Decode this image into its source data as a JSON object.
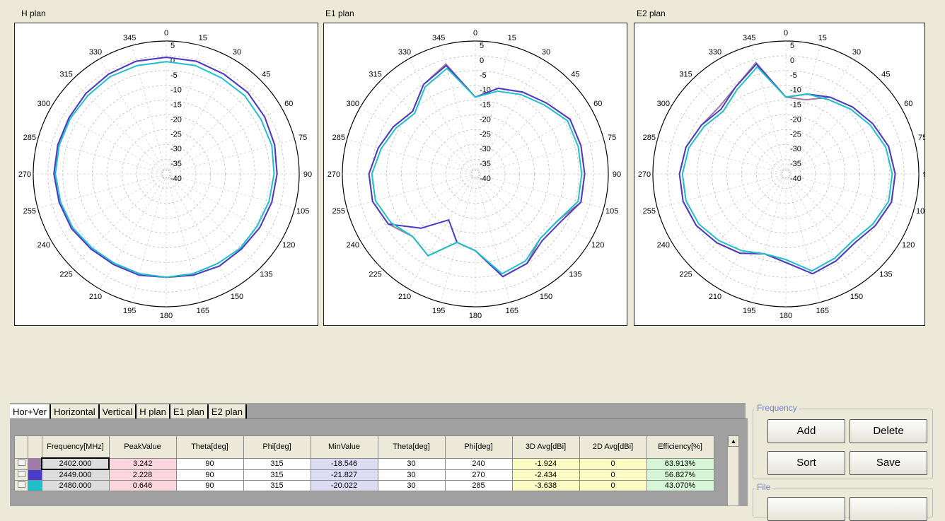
{
  "plots": [
    {
      "title": "H plan",
      "angle_labels": [
        "0",
        "15",
        "30",
        "45",
        "60",
        "75",
        "90",
        "105",
        "120",
        "135",
        "150",
        "165",
        "180",
        "195",
        "210",
        "225",
        "240",
        "255",
        "270",
        "285",
        "300",
        "315",
        "330",
        "345"
      ],
      "radial_labels": [
        "5",
        "0",
        "-5",
        "-10",
        "-15",
        "-20",
        "-25",
        "-30",
        "-35",
        "-40"
      ],
      "series": [
        {
          "color": "#a07aa8",
          "values": [
            -0.5,
            -0.5,
            -1,
            -1,
            -1.5,
            -2,
            -2.5,
            -3,
            -3.5,
            -4,
            -4,
            -4.5,
            -5,
            -5,
            -5,
            -4,
            -3,
            -2.5,
            -2,
            -2,
            -2,
            -1.5,
            -1,
            -0.5
          ]
        },
        {
          "color": "#4a3cc8",
          "values": [
            -0.5,
            -0.5,
            -1,
            -1,
            -1.5,
            -2,
            -2.5,
            -3,
            -3.5,
            -4,
            -4,
            -4.5,
            -5,
            -4.5,
            -4.5,
            -4,
            -3,
            -2.5,
            -2,
            -2,
            -2,
            -1.5,
            -1,
            -0.5
          ]
        },
        {
          "color": "#20c0c8",
          "values": [
            -2,
            -2,
            -2.5,
            -2.5,
            -3,
            -3,
            -3.5,
            -4,
            -4.5,
            -4.5,
            -5,
            -5,
            -5,
            -5,
            -5,
            -4.5,
            -3.5,
            -3,
            -2.5,
            -2.5,
            -2.5,
            -2.5,
            -2,
            -2
          ]
        }
      ]
    },
    {
      "title": "E1 plan",
      "angle_labels": [
        "0",
        "15",
        "30",
        "45",
        "60",
        "75",
        "90",
        "105",
        "120",
        "135",
        "150",
        "165",
        "180",
        "195",
        "210",
        "225",
        "240",
        "255",
        "270",
        "285",
        "300",
        "315",
        "330",
        "345"
      ],
      "radial_labels": [
        "5",
        "0",
        "-5",
        "-10",
        "-15",
        "-20",
        "-25",
        "-30",
        "-35",
        "-40"
      ],
      "series": [
        {
          "color": "#a07aa8",
          "values": [
            -14,
            -10,
            -8,
            -6,
            -3,
            -3,
            -3,
            -3,
            -8,
            -9,
            -5,
            -4,
            -14,
            -16,
            -8,
            -10,
            -6,
            -4,
            -4,
            -6,
            -8,
            -10,
            -5,
            -1.5
          ]
        },
        {
          "color": "#4a3cc8",
          "values": [
            -14,
            -10,
            -8,
            -6,
            -3,
            -3,
            -3,
            -3,
            -7,
            -8,
            -5,
            -4,
            -14,
            -16,
            -22,
            -14,
            -6,
            -4,
            -4,
            -6,
            -8,
            -10,
            -5,
            -2
          ]
        },
        {
          "color": "#20c0c8",
          "values": [
            -14,
            -11,
            -9,
            -7,
            -4,
            -4,
            -4,
            -4,
            -8,
            -9,
            -6,
            -5,
            -14,
            -16,
            -8,
            -10,
            -7,
            -5,
            -5,
            -7,
            -9,
            -11,
            -6,
            -3
          ]
        }
      ]
    },
    {
      "title": "E2 plan",
      "angle_labels": [
        "0",
        "15",
        "30",
        "45",
        "60",
        "75",
        "90",
        "105",
        "120",
        "135",
        "150",
        "165",
        "180",
        "195",
        "210",
        "225",
        "240",
        "255",
        "270",
        "285",
        "300",
        "315",
        "330",
        "345"
      ],
      "radial_labels": [
        "5",
        "0",
        "-5",
        "-10",
        "-15",
        "-20",
        "-25",
        "-30",
        "-35",
        "-40"
      ],
      "series": [
        {
          "color": "#a07aa8",
          "values": [
            -14,
            -14,
            -10,
            -8,
            -6,
            -4,
            -3,
            -3,
            -5,
            -7,
            -6,
            -5,
            -10,
            -12,
            -9,
            -7,
            -5,
            -4,
            -4,
            -5,
            -7,
            -8,
            -6,
            -1
          ]
        },
        {
          "color": "#4a3cc8",
          "values": [
            -14,
            -12,
            -10,
            -8,
            -6,
            -4,
            -3,
            -3,
            -5,
            -7,
            -6,
            -5,
            -10,
            -12,
            -9,
            -7,
            -5,
            -4,
            -4,
            -5,
            -7,
            -9,
            -6,
            -1.5
          ]
        },
        {
          "color": "#20c0c8",
          "values": [
            -14,
            -12,
            -11,
            -9,
            -7,
            -5,
            -4,
            -4,
            -6,
            -8,
            -7,
            -6,
            -11,
            -12,
            -10,
            -8,
            -6,
            -5,
            -5,
            -6,
            -8,
            -10,
            -7,
            -2.5
          ]
        }
      ]
    }
  ],
  "tabs": [
    "Hor+Ver",
    "Horizontal",
    "Vertical",
    "H plan",
    "E1 plan",
    "E2 plan"
  ],
  "table": {
    "headers": [
      "Frequency[MHz]",
      "PeakValue",
      "Theta[deg]",
      "Phi[deg]",
      "MinValue",
      "Theta[deg]",
      "Phi[deg]",
      "3D Avg[dBi]",
      "2D Avg[dBi]",
      "Efficiency[%]"
    ],
    "rows": [
      {
        "color": "#a07aa8",
        "freq": "2402.000",
        "peak": "3.242",
        "theta1": "90",
        "phi1": "315",
        "min": "-18.546",
        "theta2": "30",
        "phi2": "240",
        "avg3d": "-1.924",
        "avg2d": "0",
        "eff": "63.913%"
      },
      {
        "color": "#4a3cc8",
        "freq": "2449.000",
        "peak": "2.228",
        "theta1": "90",
        "phi1": "315",
        "min": "-21.827",
        "theta2": "30",
        "phi2": "270",
        "avg3d": "-2.434",
        "avg2d": "0",
        "eff": "56.827%"
      },
      {
        "color": "#20c0c8",
        "freq": "2480.000",
        "peak": "0.646",
        "theta1": "90",
        "phi1": "315",
        "min": "-20.022",
        "theta2": "30",
        "phi2": "285",
        "avg3d": "-3.638",
        "avg2d": "0",
        "eff": "43.070%"
      }
    ]
  },
  "frequency_group": {
    "label": "Frequency",
    "add": "Add",
    "delete": "Delete",
    "sort": "Sort",
    "save": "Save"
  },
  "file_group": {
    "label": "File"
  }
}
